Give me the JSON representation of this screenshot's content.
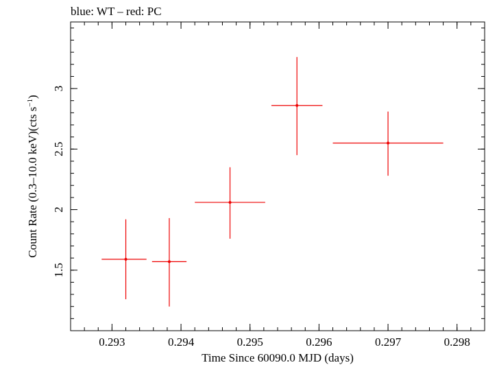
{
  "chart_data": {
    "type": "scatter",
    "title": "blue: WT – red: PC",
    "xlabel": "Time Since 60090.0 MJD (days)",
    "ylabel_main": "Count Rate (0.3–10.0 keV)(cts s",
    "ylabel_sup": "−1",
    "ylabel_end": ")",
    "xlim": [
      0.2924,
      0.2984
    ],
    "ylim": [
      1.0,
      3.55
    ],
    "x_major_ticks": [
      0.293,
      0.294,
      0.295,
      0.296,
      0.297,
      0.298
    ],
    "x_tick_labels": [
      "0.293",
      "0.294",
      "0.295",
      "0.296",
      "0.297",
      "0.298"
    ],
    "x_minor_step": 0.0002,
    "y_major_ticks": [
      1.5,
      2.0,
      2.5,
      3.0
    ],
    "y_tick_labels": [
      "1.5",
      "2",
      "2.5",
      "3"
    ],
    "y_minor_step": 0.1,
    "grid": false,
    "series": [
      {
        "color": "#ee0000",
        "points": [
          {
            "x": 0.2932,
            "xerr_lo": 0.00035,
            "xerr_hi": 0.0003,
            "y": 1.59,
            "yerr_lo": 0.33,
            "yerr_hi": 0.33
          },
          {
            "x": 0.29383,
            "xerr_lo": 0.00025,
            "xerr_hi": 0.00025,
            "y": 1.57,
            "yerr_lo": 0.37,
            "yerr_hi": 0.36
          },
          {
            "x": 0.29471,
            "xerr_lo": 0.00051,
            "xerr_hi": 0.00051,
            "y": 2.06,
            "yerr_lo": 0.3,
            "yerr_hi": 0.29
          },
          {
            "x": 0.29568,
            "xerr_lo": 0.00037,
            "xerr_hi": 0.00037,
            "y": 2.86,
            "yerr_lo": 0.41,
            "yerr_hi": 0.4
          },
          {
            "x": 0.297,
            "xerr_lo": 0.0008,
            "xerr_hi": 0.0008,
            "y": 2.55,
            "yerr_lo": 0.27,
            "yerr_hi": 0.26
          }
        ]
      }
    ]
  }
}
